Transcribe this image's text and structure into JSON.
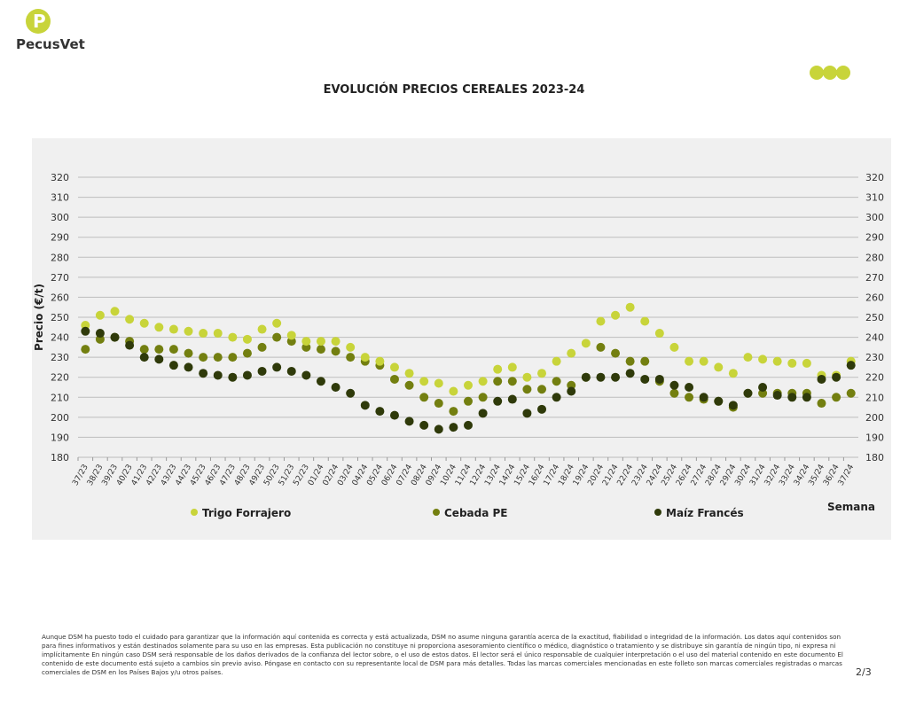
{
  "brand": "PecusVet",
  "title": "EVOLUCIÓN PRECIOS CEREALES 2023-24",
  "page_number": "2/3",
  "footer": "Aunque DSM ha puesto todo el cuidado para garantizar que la información aquí contenida es correcta y está actualizada, DSM no asume ninguna garantía acerca de la exactitud, fiabilidad o integridad de la información. Los datos aquí contenidos son para fines informativos y están destinados solamente para su uso en las empresas. Esta publicación no constituye ni proporciona asesoramiento científico o médico, diagnóstico o tratamiento y se distribuye sin garantía de ningún tipo, ni expresa ni implícitamente En ningún caso DSM será responsable de los daños derivados de la confianza del lector sobre, o el uso de estos datos. El lector será el único responsable de cualquier interpretación o el uso del material contenido en este documento El contenido de este documento está sujeto a cambios sin previo aviso. Póngase en contacto con su representante local de DSM para más detalles. Todas las marcas comerciales mencionadas en este folleto son marcas comerciales registradas o marcas comerciales de DSM en los Países Bajos y/u otros países.",
  "chart_data": {
    "type": "scatter",
    "title": "EVOLUCIÓN PRECIOS CEREALES 2023-24",
    "xlabel": "Semana",
    "ylabel": "Precio (€/t)",
    "ylim": [
      180,
      320
    ],
    "yticks": [
      180,
      190,
      200,
      210,
      220,
      230,
      240,
      250,
      260,
      270,
      280,
      290,
      300,
      310,
      320
    ],
    "grid": true,
    "legend": "bottom",
    "categories": [
      "37/23",
      "38/23",
      "39/23",
      "40/23",
      "41/23",
      "42/23",
      "43/23",
      "44/23",
      "45/23",
      "46/23",
      "47/23",
      "48/23",
      "49/23",
      "50/23",
      "51/23",
      "52/23",
      "01/24",
      "02/24",
      "03/24",
      "04/24",
      "05/24",
      "06/24",
      "07/24",
      "08/24",
      "09/24",
      "10/24",
      "11/24",
      "12/24",
      "13/24",
      "14/24",
      "15/24",
      "16/24",
      "17/24",
      "18/24",
      "19/24",
      "20/24",
      "21/24",
      "22/24",
      "23/24",
      "24/24",
      "25/24",
      "26/24",
      "27/24",
      "28/24",
      "29/24",
      "30/24",
      "31/24",
      "32/24",
      "33/24",
      "34/24",
      "35/24",
      "36/24",
      "37/24"
    ],
    "series": [
      {
        "name": "Trigo Forrajero",
        "color": "#c8d43a",
        "values": [
          246,
          251,
          253,
          249,
          247,
          245,
          244,
          243,
          242,
          242,
          240,
          239,
          244,
          247,
          241,
          238,
          238,
          238,
          235,
          230,
          228,
          225,
          222,
          218,
          217,
          213,
          216,
          218,
          224,
          225,
          220,
          222,
          228,
          232,
          237,
          248,
          251,
          255,
          248,
          242,
          235,
          228,
          228,
          225,
          222,
          230,
          229,
          228,
          227,
          227,
          221,
          221,
          228
        ]
      },
      {
        "name": "Cebada PE",
        "color": "#737f10",
        "values": [
          234,
          239,
          240,
          238,
          234,
          234,
          234,
          232,
          230,
          230,
          230,
          232,
          235,
          240,
          238,
          235,
          234,
          233,
          230,
          228,
          226,
          219,
          216,
          210,
          207,
          203,
          208,
          210,
          218,
          218,
          214,
          214,
          218,
          216,
          220,
          235,
          232,
          228,
          228,
          218,
          212,
          210,
          209,
          208,
          205,
          212,
          212,
          212,
          212,
          212,
          207,
          210,
          212
        ]
      },
      {
        "name": "Maíz Francés",
        "color": "#2f3a0a",
        "values": [
          243,
          242,
          240,
          236,
          230,
          229,
          226,
          225,
          222,
          221,
          220,
          221,
          223,
          225,
          223,
          221,
          218,
          215,
          212,
          206,
          203,
          201,
          198,
          196,
          194,
          195,
          196,
          202,
          208,
          209,
          202,
          204,
          210,
          213,
          220,
          220,
          220,
          222,
          219,
          219,
          216,
          215,
          210,
          208,
          206,
          212,
          215,
          211,
          210,
          210,
          219,
          220,
          226
        ]
      }
    ]
  }
}
